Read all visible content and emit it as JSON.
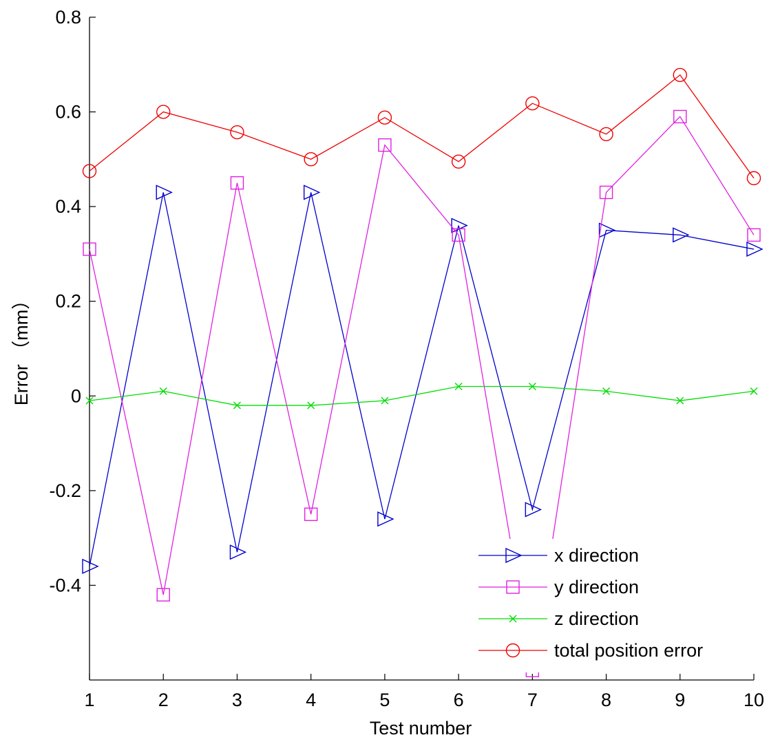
{
  "chart_data": {
    "type": "line",
    "x": [
      1,
      2,
      3,
      4,
      5,
      6,
      7,
      8,
      9,
      10
    ],
    "xlabel": "Test number",
    "ylabel": "Error （mm）",
    "xlim": [
      1,
      10
    ],
    "ylim": [
      -0.6,
      0.8
    ],
    "xticks": [
      "1",
      "2",
      "3",
      "4",
      "5",
      "6",
      "7",
      "8",
      "9",
      "10"
    ],
    "yticks": [
      "0.8",
      "0.6",
      "0.4",
      "0.2",
      "0",
      "-0.2",
      "-0.4"
    ],
    "ytick_values": [
      0.8,
      0.6,
      0.4,
      0.2,
      0,
      -0.2,
      -0.4
    ],
    "grid": false,
    "legend_position": "bottom-right",
    "series": [
      {
        "name": "x direction",
        "color": "#0000cc",
        "marker": "triangle-right",
        "values": [
          -0.36,
          0.43,
          -0.33,
          0.43,
          -0.26,
          0.36,
          -0.24,
          0.35,
          0.34,
          0.31
        ]
      },
      {
        "name": "y direction",
        "color": "#e020e0",
        "marker": "square",
        "values": [
          0.31,
          -0.42,
          0.45,
          -0.25,
          0.53,
          0.34,
          -0.58,
          0.43,
          0.59,
          0.34
        ]
      },
      {
        "name": "z direction",
        "color": "#00dd00",
        "marker": "x",
        "values": [
          -0.01,
          0.01,
          -0.02,
          -0.02,
          -0.01,
          0.02,
          0.02,
          0.01,
          -0.01,
          0.01
        ]
      },
      {
        "name": "total position error",
        "color": "#ee0000",
        "marker": "circle",
        "values": [
          0.475,
          0.6,
          0.557,
          0.5,
          0.588,
          0.495,
          0.618,
          0.553,
          0.678,
          0.46
        ]
      }
    ]
  }
}
